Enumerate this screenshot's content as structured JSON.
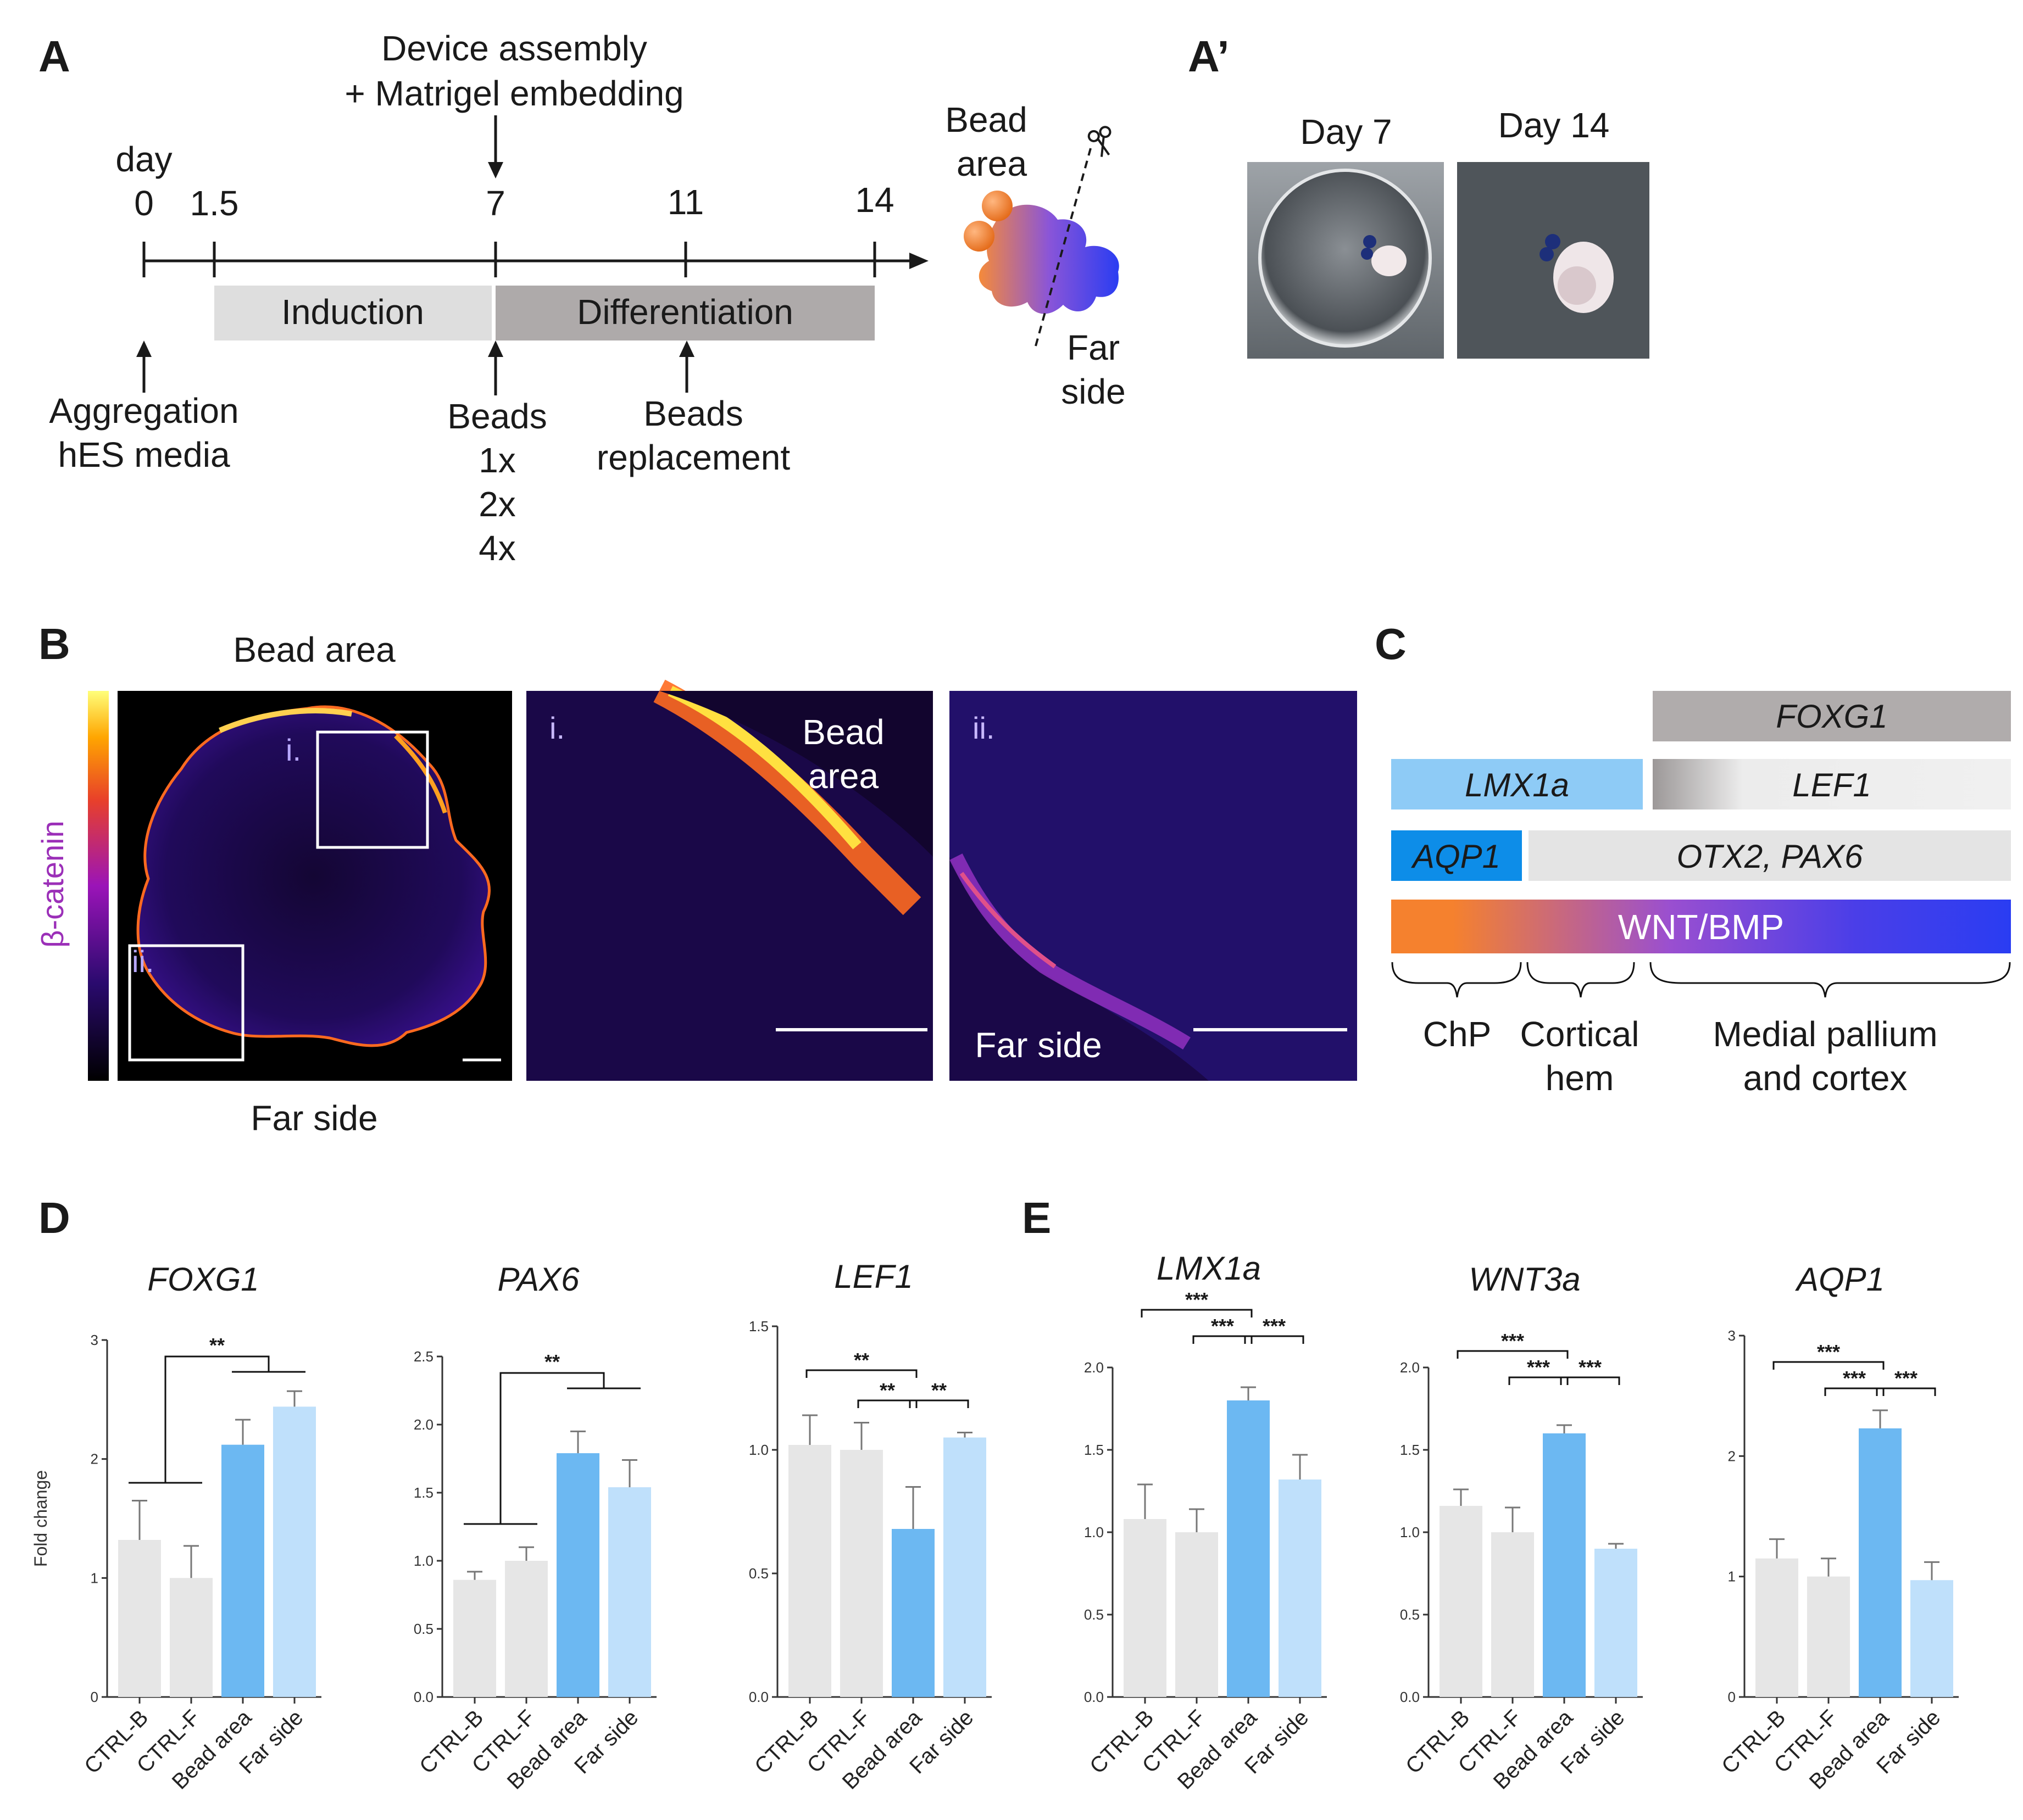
{
  "panel_labels": {
    "A": "A",
    "A2": "A’",
    "B": "B",
    "C": "C",
    "D": "D",
    "E": "E"
  },
  "panelA": {
    "device": "Device  assembly",
    "matrigel": "+ Matrigel  embedding",
    "day_word": "day",
    "ticks": [
      "0",
      "1.5",
      "7",
      "11",
      "14"
    ],
    "induction": "Induction",
    "differentiation": "Differentiation",
    "aggregation": "Aggregation",
    "hes_media": "hES media",
    "beads": "Beads",
    "doses": [
      "1x",
      "2x",
      "4x"
    ],
    "beads2": "Beads",
    "replacement": "replacement",
    "bead_area_1": "Bead",
    "bead_area_2": "area",
    "far_1": "Far",
    "far_2": "side"
  },
  "panelA2": {
    "day7": "Day 7",
    "day14": "Day 14"
  },
  "panelB": {
    "top": "Bead area",
    "bottom": "Far side",
    "colorbar": "β-catenin",
    "inset_i": "i.",
    "inset_ii": "ii.",
    "bead_1": "Bead",
    "bead_2": "area",
    "far_label": "Far side"
  },
  "panelC": {
    "foxg1": "FOXG1",
    "lmx1a": "LMX1a",
    "lef1": "LEF1",
    "aqp1": "AQP1",
    "otx2": "OTX2, PAX6",
    "wnt": "WNT/BMP",
    "chp": "ChP",
    "cortical_1": "Cortical",
    "cortical_2": "hem",
    "medial_1": "Medial  pallium",
    "medial_2": "and cortex"
  },
  "colors": {
    "ctrl": "#e6e6e6",
    "bead": "#6cb8f2",
    "far": "#bfe0fb",
    "orange": "#f5812e",
    "blue": "#2a3df2"
  },
  "chart_data": [
    {
      "type": "bar",
      "title": "FOXG1",
      "ylabel": "Fold change",
      "categories": [
        "CTRL-B",
        "CTRL-F",
        "Bead area",
        "Far side"
      ],
      "values": [
        1.32,
        1.0,
        2.12,
        2.44
      ],
      "errors": [
        0.33,
        0.27,
        0.21,
        0.13
      ],
      "ylim": [
        0,
        3
      ],
      "yticks": [
        "0",
        "1",
        "2",
        "3"
      ],
      "significance": [
        "**"
      ]
    },
    {
      "type": "bar",
      "title": "PAX6",
      "ylabel": "",
      "categories": [
        "CTRL-B",
        "CTRL-F",
        "Bead area",
        "Far side"
      ],
      "values": [
        0.86,
        1.0,
        1.79,
        1.54
      ],
      "errors": [
        0.06,
        0.1,
        0.16,
        0.2
      ],
      "ylim": [
        0,
        2.5
      ],
      "yticks": [
        "0.0",
        "0.5",
        "1.0",
        "1.5",
        "2.0",
        "2.5"
      ],
      "significance": [
        "**"
      ]
    },
    {
      "type": "bar",
      "title": "LEF1",
      "ylabel": "",
      "categories": [
        "CTRL-B",
        "CTRL-F",
        "Bead area",
        "Far side"
      ],
      "values": [
        1.02,
        1.0,
        0.68,
        1.05
      ],
      "errors": [
        0.12,
        0.11,
        0.17,
        0.02
      ],
      "ylim": [
        0,
        1.5
      ],
      "yticks": [
        "0.0",
        "0.5",
        "1.0",
        "1.5"
      ],
      "significance": [
        "**",
        "**",
        "**"
      ]
    },
    {
      "type": "bar",
      "title": "LMX1a",
      "ylabel": "",
      "categories": [
        "CTRL-B",
        "CTRL-F",
        "Bead area",
        "Far side"
      ],
      "values": [
        1.08,
        1.0,
        1.8,
        1.32
      ],
      "errors": [
        0.21,
        0.14,
        0.08,
        0.15
      ],
      "ylim": [
        0,
        2.0
      ],
      "yticks": [
        "0.0",
        "0.5",
        "1.0",
        "1.5",
        "2.0"
      ],
      "significance": [
        "***",
        "***",
        "***"
      ]
    },
    {
      "type": "bar",
      "title": "WNT3a",
      "ylabel": "",
      "categories": [
        "CTRL-B",
        "CTRL-F",
        "Bead area",
        "Far side"
      ],
      "values": [
        1.16,
        1.0,
        1.6,
        0.9
      ],
      "errors": [
        0.1,
        0.15,
        0.05,
        0.03
      ],
      "ylim": [
        0,
        2.0
      ],
      "yticks": [
        "0.0",
        "0.5",
        "1.0",
        "1.5",
        "2.0"
      ],
      "significance": [
        "***",
        "***",
        "***"
      ]
    },
    {
      "type": "bar",
      "title": "AQP1",
      "ylabel": "",
      "categories": [
        "CTRL-B",
        "CTRL-F",
        "Bead area",
        "Far side"
      ],
      "values": [
        1.15,
        1.0,
        2.23,
        0.97
      ],
      "errors": [
        0.16,
        0.15,
        0.15,
        0.15
      ],
      "ylim": [
        0,
        3
      ],
      "yticks": [
        "0",
        "1",
        "2",
        "3"
      ],
      "significance": [
        "***",
        "***",
        "***"
      ]
    }
  ]
}
